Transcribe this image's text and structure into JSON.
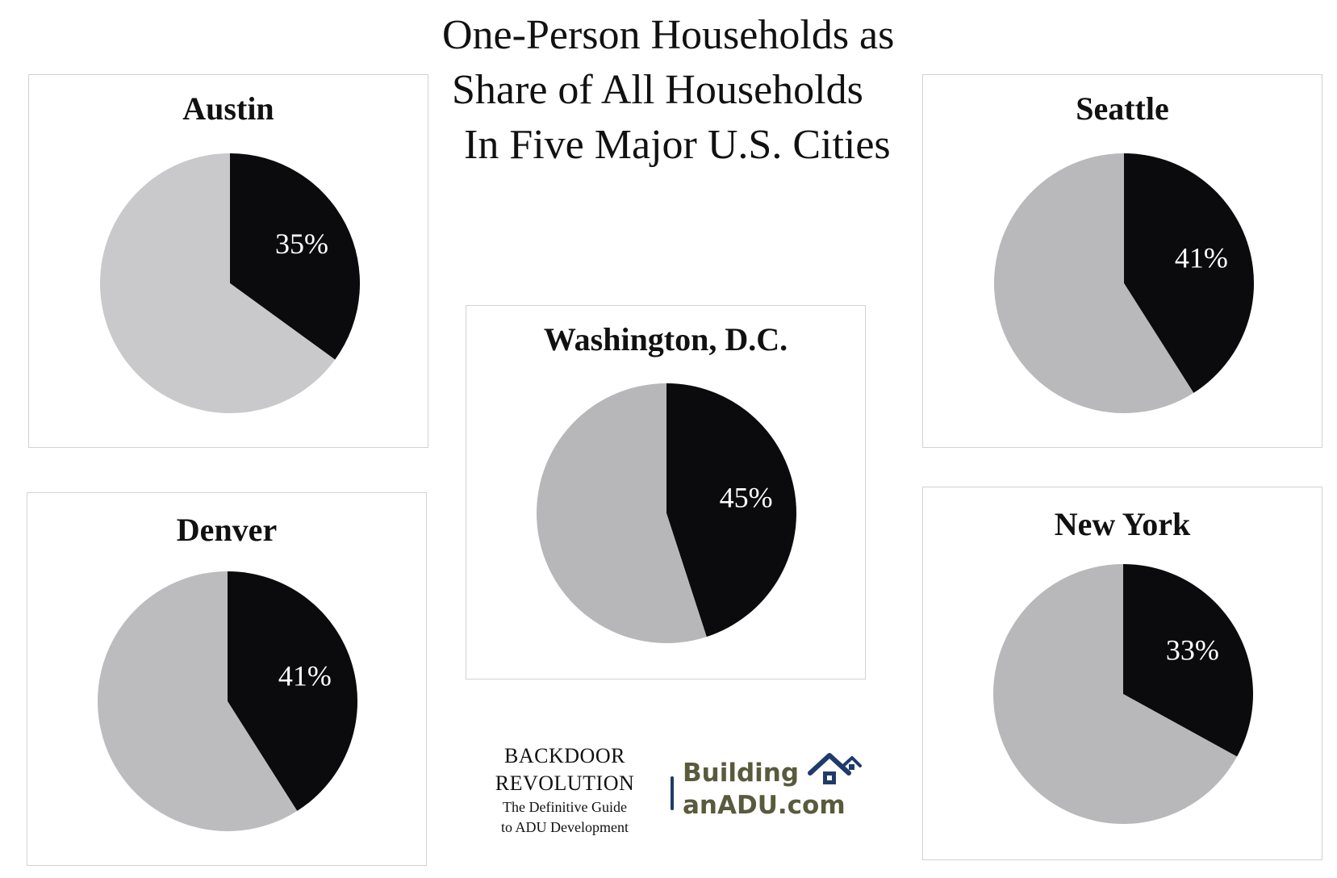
{
  "title": {
    "line1": "One-Person Households as",
    "line2": "Share of  All Households",
    "line3": "In Five Major U.S. Cities"
  },
  "colors": {
    "highlight": "#0b0b0d",
    "rest": "#c8c8ca",
    "rest_alt": "#b7b7b9",
    "label": "#ffffff"
  },
  "chart_data": [
    {
      "type": "pie",
      "title": "Austin",
      "values": [
        35,
        65
      ],
      "labels": [
        "35%",
        ""
      ]
    },
    {
      "type": "pie",
      "title": "Seattle",
      "values": [
        41,
        59
      ],
      "labels": [
        "41%",
        ""
      ]
    },
    {
      "type": "pie",
      "title": "Washington, D.C.",
      "values": [
        45,
        55
      ],
      "labels": [
        "45%",
        ""
      ]
    },
    {
      "type": "pie",
      "title": "Denver",
      "values": [
        41,
        59
      ],
      "labels": [
        "41%",
        ""
      ]
    },
    {
      "type": "pie",
      "title": "New York",
      "values": [
        33,
        67
      ],
      "labels": [
        "33%",
        ""
      ]
    }
  ],
  "branding": {
    "backdoor_line1": "BACKDOOR",
    "backdoor_line2": "REVOLUTION",
    "tagline_line1": "The Definitive Guide",
    "tagline_line2": "to ADU Development",
    "site_line1": "Building",
    "site_line2": "anADU.com",
    "house_icon": "house-icon"
  }
}
